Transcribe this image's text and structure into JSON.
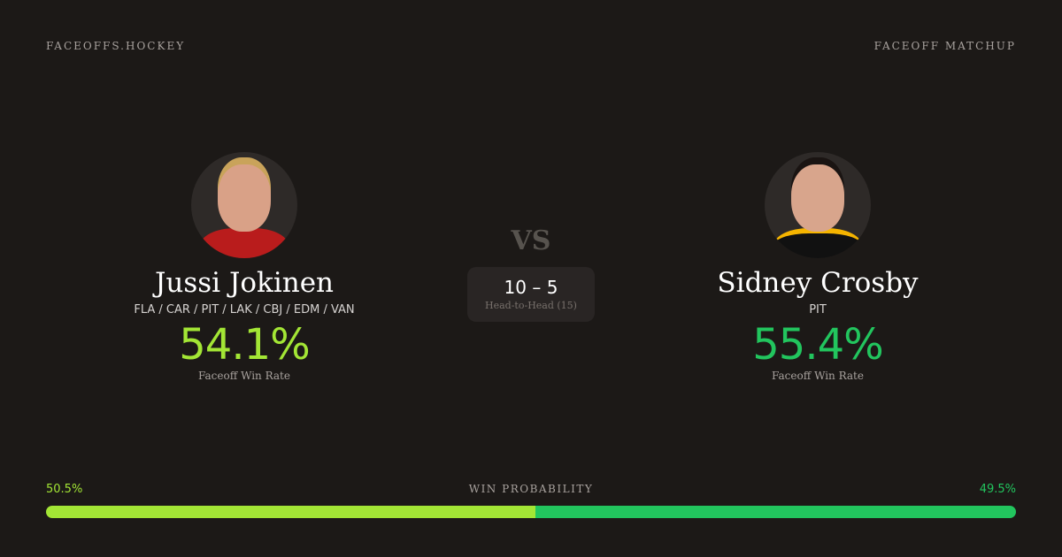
{
  "header": {
    "brand": "FACEOFFS.HOCKEY",
    "label": "FACEOFF MATCHUP"
  },
  "vs": "VS",
  "head_to_head": {
    "score": "10 – 5",
    "label": "Head-to-Head (15)"
  },
  "players": [
    {
      "name": "Jussi Jokinen",
      "teams": "FLA / CAR / PIT / LAK / CBJ / EDM / VAN",
      "win_rate": "54.1%",
      "win_rate_label": "Faceoff Win Rate",
      "color": "#a3e635"
    },
    {
      "name": "Sidney Crosby",
      "teams": "PIT",
      "win_rate": "55.4%",
      "win_rate_label": "Faceoff Win Rate",
      "color": "#22c55e"
    }
  ],
  "win_probability": {
    "label": "WIN PROBABILITY",
    "left": "50.5%",
    "right": "49.5%",
    "left_value": 50.5,
    "right_value": 49.5
  }
}
